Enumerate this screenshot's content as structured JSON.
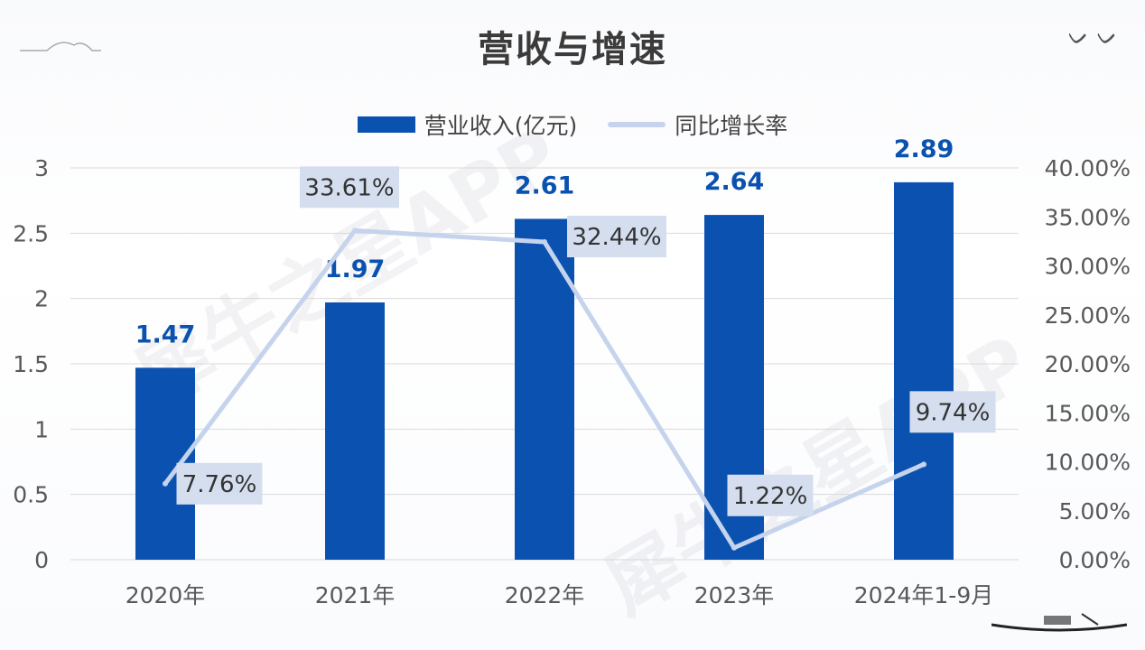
{
  "chart_data": {
    "type": "bar+line",
    "title": "营收与增速",
    "categories": [
      "2020年",
      "2021年",
      "2022年",
      "2023年",
      "2024年1-9月"
    ],
    "series": [
      {
        "name": "营业收入(亿元)",
        "type": "bar",
        "axis": "left",
        "values": [
          1.47,
          1.97,
          2.61,
          2.64,
          2.89
        ],
        "labels": [
          "1.47",
          "1.97",
          "2.61",
          "2.64",
          "2.89"
        ]
      },
      {
        "name": "同比增长率",
        "type": "line",
        "axis": "right",
        "values": [
          7.76,
          33.61,
          32.44,
          1.22,
          9.74
        ],
        "labels": [
          "7.76%",
          "33.61%",
          "32.44%",
          "1.22%",
          "9.74%"
        ]
      }
    ],
    "y_left": {
      "min": 0,
      "max": 3,
      "ticks": [
        "0",
        "0.5",
        "1",
        "1.5",
        "2",
        "2.5",
        "3"
      ]
    },
    "y_right": {
      "min": 0,
      "max": 40,
      "ticks": [
        "0.00%",
        "5.00%",
        "10.00%",
        "15.00%",
        "20.00%",
        "25.00%",
        "30.00%",
        "35.00%",
        "40.00%"
      ]
    },
    "legend_position": "top-center",
    "grid": true
  },
  "watermark": "犀牛之星APP",
  "colors": {
    "bar": "#0b52b0",
    "bar_label": "#0b52b0",
    "line": "#c5d4ec",
    "label_box": "#d5deef",
    "grid": "#d9d9d9",
    "axis_text": "#595959"
  },
  "icons": [
    "birds-decoration-icon",
    "boat-decoration-icon",
    "mountain-decoration-icon"
  ]
}
